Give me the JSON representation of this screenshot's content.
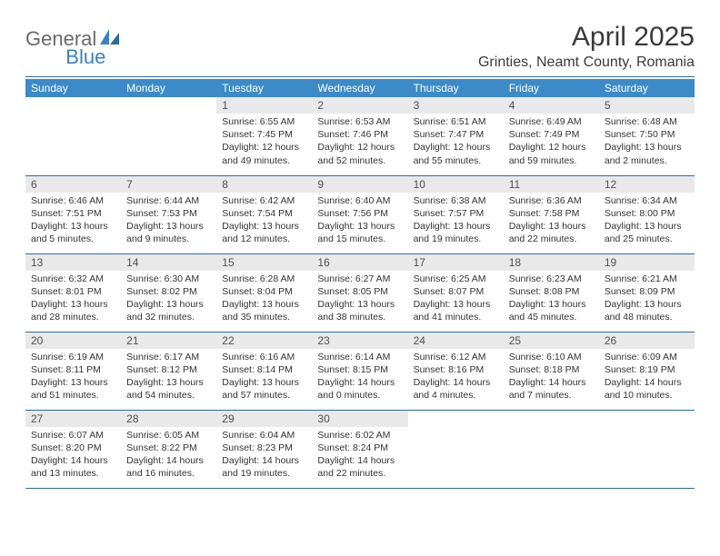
{
  "logo": {
    "part1": "General",
    "part2": "Blue"
  },
  "title": "April 2025",
  "location": "Grinties, Neamt County, Romania",
  "colors": {
    "header_bg": "#3b8bc9",
    "header_text": "#ffffff",
    "daynum_bg": "#e9e9e9",
    "rule": "#2d6aa3",
    "logo_gray": "#6a6a6a",
    "logo_blue": "#3b82c4"
  },
  "typography": {
    "title_fontsize": 30,
    "location_fontsize": 16,
    "dayheader_fontsize": 12,
    "body_fontsize": 10.5
  },
  "day_headers": [
    "Sunday",
    "Monday",
    "Tuesday",
    "Wednesday",
    "Thursday",
    "Friday",
    "Saturday"
  ],
  "weeks": [
    [
      null,
      null,
      {
        "n": "1",
        "sunrise": "6:55 AM",
        "sunset": "7:45 PM",
        "daylight": "12 hours and 49 minutes."
      },
      {
        "n": "2",
        "sunrise": "6:53 AM",
        "sunset": "7:46 PM",
        "daylight": "12 hours and 52 minutes."
      },
      {
        "n": "3",
        "sunrise": "6:51 AM",
        "sunset": "7:47 PM",
        "daylight": "12 hours and 55 minutes."
      },
      {
        "n": "4",
        "sunrise": "6:49 AM",
        "sunset": "7:49 PM",
        "daylight": "12 hours and 59 minutes."
      },
      {
        "n": "5",
        "sunrise": "6:48 AM",
        "sunset": "7:50 PM",
        "daylight": "13 hours and 2 minutes."
      }
    ],
    [
      {
        "n": "6",
        "sunrise": "6:46 AM",
        "sunset": "7:51 PM",
        "daylight": "13 hours and 5 minutes."
      },
      {
        "n": "7",
        "sunrise": "6:44 AM",
        "sunset": "7:53 PM",
        "daylight": "13 hours and 9 minutes."
      },
      {
        "n": "8",
        "sunrise": "6:42 AM",
        "sunset": "7:54 PM",
        "daylight": "13 hours and 12 minutes."
      },
      {
        "n": "9",
        "sunrise": "6:40 AM",
        "sunset": "7:56 PM",
        "daylight": "13 hours and 15 minutes."
      },
      {
        "n": "10",
        "sunrise": "6:38 AM",
        "sunset": "7:57 PM",
        "daylight": "13 hours and 19 minutes."
      },
      {
        "n": "11",
        "sunrise": "6:36 AM",
        "sunset": "7:58 PM",
        "daylight": "13 hours and 22 minutes."
      },
      {
        "n": "12",
        "sunrise": "6:34 AM",
        "sunset": "8:00 PM",
        "daylight": "13 hours and 25 minutes."
      }
    ],
    [
      {
        "n": "13",
        "sunrise": "6:32 AM",
        "sunset": "8:01 PM",
        "daylight": "13 hours and 28 minutes."
      },
      {
        "n": "14",
        "sunrise": "6:30 AM",
        "sunset": "8:02 PM",
        "daylight": "13 hours and 32 minutes."
      },
      {
        "n": "15",
        "sunrise": "6:28 AM",
        "sunset": "8:04 PM",
        "daylight": "13 hours and 35 minutes."
      },
      {
        "n": "16",
        "sunrise": "6:27 AM",
        "sunset": "8:05 PM",
        "daylight": "13 hours and 38 minutes."
      },
      {
        "n": "17",
        "sunrise": "6:25 AM",
        "sunset": "8:07 PM",
        "daylight": "13 hours and 41 minutes."
      },
      {
        "n": "18",
        "sunrise": "6:23 AM",
        "sunset": "8:08 PM",
        "daylight": "13 hours and 45 minutes."
      },
      {
        "n": "19",
        "sunrise": "6:21 AM",
        "sunset": "8:09 PM",
        "daylight": "13 hours and 48 minutes."
      }
    ],
    [
      {
        "n": "20",
        "sunrise": "6:19 AM",
        "sunset": "8:11 PM",
        "daylight": "13 hours and 51 minutes."
      },
      {
        "n": "21",
        "sunrise": "6:17 AM",
        "sunset": "8:12 PM",
        "daylight": "13 hours and 54 minutes."
      },
      {
        "n": "22",
        "sunrise": "6:16 AM",
        "sunset": "8:14 PM",
        "daylight": "13 hours and 57 minutes."
      },
      {
        "n": "23",
        "sunrise": "6:14 AM",
        "sunset": "8:15 PM",
        "daylight": "14 hours and 0 minutes."
      },
      {
        "n": "24",
        "sunrise": "6:12 AM",
        "sunset": "8:16 PM",
        "daylight": "14 hours and 4 minutes."
      },
      {
        "n": "25",
        "sunrise": "6:10 AM",
        "sunset": "8:18 PM",
        "daylight": "14 hours and 7 minutes."
      },
      {
        "n": "26",
        "sunrise": "6:09 AM",
        "sunset": "8:19 PM",
        "daylight": "14 hours and 10 minutes."
      }
    ],
    [
      {
        "n": "27",
        "sunrise": "6:07 AM",
        "sunset": "8:20 PM",
        "daylight": "14 hours and 13 minutes."
      },
      {
        "n": "28",
        "sunrise": "6:05 AM",
        "sunset": "8:22 PM",
        "daylight": "14 hours and 16 minutes."
      },
      {
        "n": "29",
        "sunrise": "6:04 AM",
        "sunset": "8:23 PM",
        "daylight": "14 hours and 19 minutes."
      },
      {
        "n": "30",
        "sunrise": "6:02 AM",
        "sunset": "8:24 PM",
        "daylight": "14 hours and 22 minutes."
      },
      null,
      null,
      null
    ]
  ],
  "labels": {
    "sunrise": "Sunrise: ",
    "sunset": "Sunset: ",
    "daylight": "Daylight: "
  }
}
